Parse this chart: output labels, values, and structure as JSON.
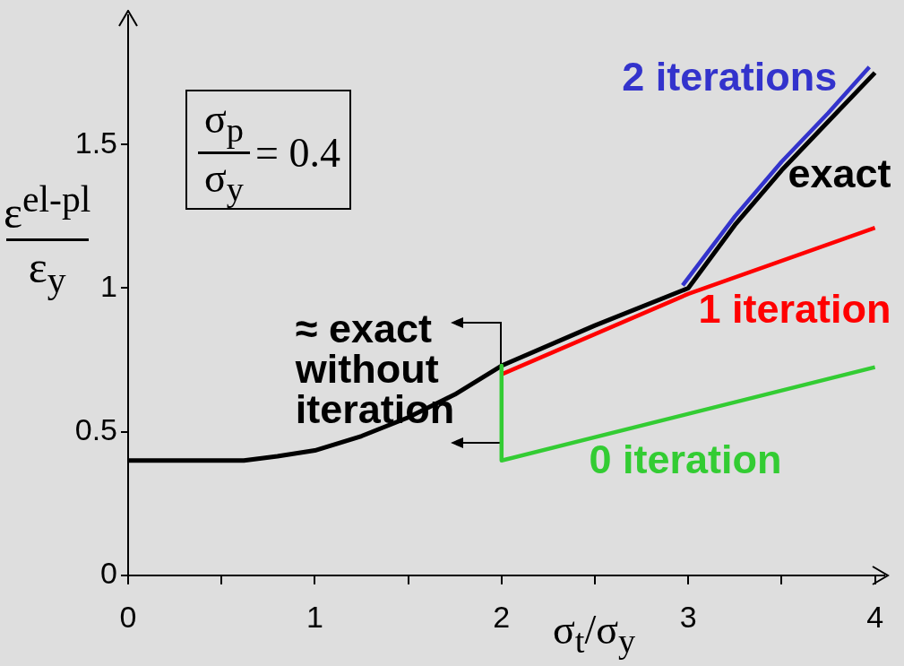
{
  "chart_data": {
    "type": "line",
    "xlabel": "σ$_{t}$/σ$_{y}$",
    "ylabel": "ε$^{el-pl}$ ε$_{y}$",
    "xlim": [
      0,
      4.05
    ],
    "xticks": [
      0,
      {
        "value": 0.5,
        "label": null
      },
      1,
      {
        "value": 1.5,
        "label": null
      },
      2,
      {
        "value": 2.5,
        "label": null
      },
      3,
      {
        "value": 3.5,
        "label": null
      },
      4
    ],
    "ylim": [
      0,
      1.95
    ],
    "yticks": [
      0,
      0.5,
      1,
      1.5
    ],
    "grid": false,
    "legend": false,
    "marker": "none",
    "line_style": "solid",
    "series": [
      {
        "name": "exact",
        "color": "#000000",
        "x": [
          0,
          0.62,
          0.8,
          1,
          1.25,
          1.5,
          1.75,
          2,
          2.5,
          3,
          3.25,
          3.5,
          3.75,
          4
        ],
        "values": [
          0.4,
          0.4,
          0.415,
          0.435,
          0.485,
          0.55,
          0.63,
          0.73,
          0.87,
          1.0,
          1.22,
          1.41,
          1.58,
          1.75
        ]
      },
      {
        "name": "2 iterations",
        "color": "#3333cc",
        "x": [
          2.97,
          3.25,
          3.5,
          3.75,
          3.97
        ],
        "values": [
          1.01,
          1.25,
          1.44,
          1.61,
          1.77
        ]
      },
      {
        "name": "1 iteration",
        "color": "#ff0000",
        "x": [
          2,
          3,
          4
        ],
        "values": [
          0.7,
          0.98,
          1.21
        ]
      },
      {
        "name": "0 iteration",
        "color": "#33cc33",
        "x": [
          2,
          2,
          4
        ],
        "values": [
          0.73,
          0.4,
          0.725
        ]
      }
    ],
    "annotations": [
      "σ$_{p}$ σ$_{y}$ = 0.4",
      {
        "text": "≈ exact without iteration",
        "x": 2,
        "y": 0.73
      }
    ]
  }
}
